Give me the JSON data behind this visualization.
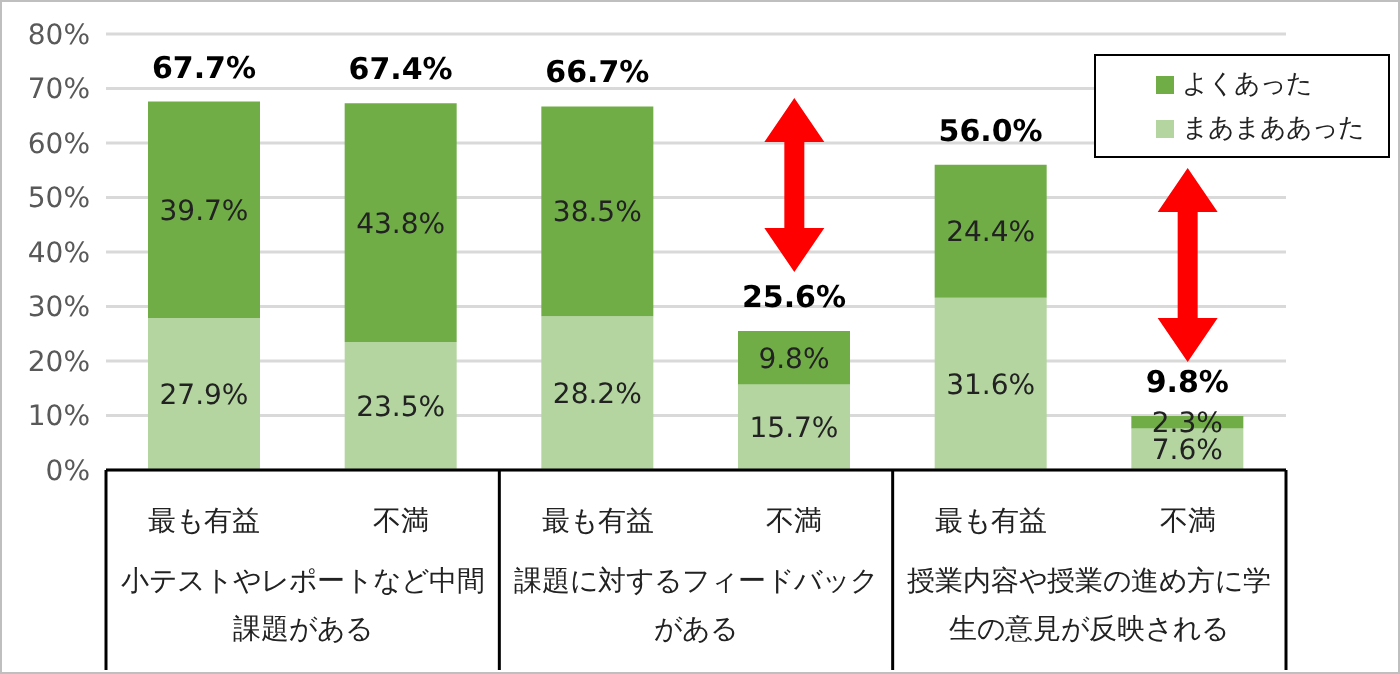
{
  "chart_data": {
    "type": "bar",
    "stacked": true,
    "categories": [
      "最も有益",
      "不満",
      "最も有益",
      "不満",
      "最も有益",
      "不満"
    ],
    "series": [
      {
        "name": "まあまああった",
        "color": "#b4d5a0",
        "values": [
          27.9,
          23.5,
          28.2,
          15.7,
          31.6,
          7.6
        ],
        "value_labels": [
          "27.9%",
          "23.5%",
          "28.2%",
          "15.7%",
          "31.6%",
          "7.6%"
        ]
      },
      {
        "name": "よくあった",
        "color": "#70ad47",
        "values": [
          39.7,
          43.8,
          38.5,
          9.8,
          24.4,
          2.3
        ],
        "value_labels": [
          "39.7%",
          "43.8%",
          "38.5%",
          "9.8%",
          "24.4%",
          "2.3%"
        ]
      }
    ],
    "totals": [
      "67.7%",
      "67.4%",
      "66.7%",
      "25.6%",
      "56.0%",
      "9.8%"
    ],
    "ylim": [
      0,
      80
    ],
    "yticks": [
      {
        "value": 0,
        "label": "0%"
      },
      {
        "value": 10,
        "label": "10%"
      },
      {
        "value": 20,
        "label": "20%"
      },
      {
        "value": 30,
        "label": "30%"
      },
      {
        "value": 40,
        "label": "40%"
      },
      {
        "value": 50,
        "label": "50%"
      },
      {
        "value": 60,
        "label": "60%"
      },
      {
        "value": 70,
        "label": "70%"
      },
      {
        "value": 80,
        "label": "80%"
      }
    ],
    "grid": "y",
    "legend": "top right",
    "annotations": [
      "小テストやレポートなど中間課題がある",
      "課題に対するフィードバックがある",
      "授業内容や授業の進め方に学生の意見が反映される"
    ]
  }
}
